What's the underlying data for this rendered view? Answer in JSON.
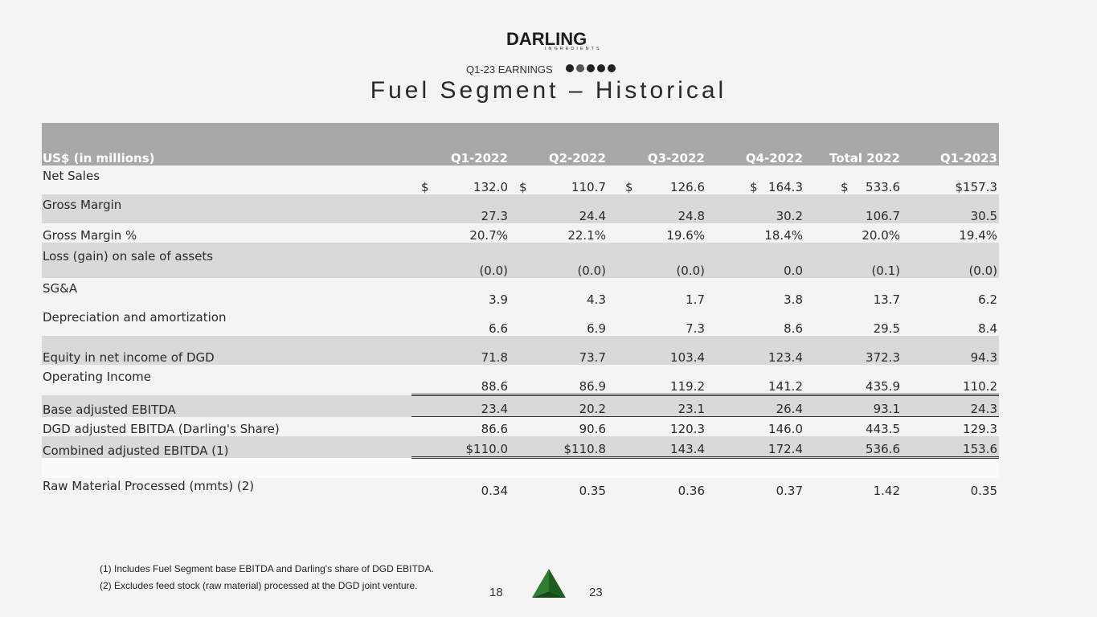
{
  "brand": {
    "name": "DARLING",
    "sub": "INGREDIENTS"
  },
  "header": {
    "subtitle": "Q1-23 EARNINGS",
    "title": "Fuel Segment – Historical"
  },
  "table": {
    "header": [
      "US$ (in millions)",
      "Q1-2022",
      "Q2-2022",
      "Q3-2022",
      "Q4-2022",
      "Total 2022",
      "Q1-2023"
    ],
    "rows": [
      {
        "label": "Net Sales",
        "values": [
          "132.0",
          "110.7",
          "126.6",
          "164.3",
          "533.6",
          "$157.3"
        ]
      },
      {
        "label": "Gross Margin",
        "values": [
          "27.3",
          "24.4",
          "24.8",
          "30.2",
          "106.7",
          "30.5"
        ]
      },
      {
        "label": "Gross Margin %",
        "values": [
          "20.7%",
          "22.1%",
          "19.6%",
          "18.4%",
          "20.0%",
          "19.4%"
        ]
      },
      {
        "label": "Loss (gain) on sale of assets",
        "values": [
          "(0.0)",
          "(0.0)",
          "(0.0)",
          "0.0",
          "(0.1)",
          "(0.0)"
        ]
      },
      {
        "label": "SG&A",
        "values": [
          "3.9",
          "4.3",
          "1.7",
          "3.8",
          "13.7",
          "6.2"
        ]
      },
      {
        "label": "Depreciation and amortization",
        "values": [
          "6.6",
          "6.9",
          "7.3",
          "8.6",
          "29.5",
          "8.4"
        ]
      },
      {
        "label": "Equity in net income of DGD",
        "values": [
          "71.8",
          "73.7",
          "103.4",
          "123.4",
          "372.3",
          "94.3"
        ]
      },
      {
        "label": "Operating Income",
        "values": [
          "88.6",
          "86.9",
          "119.2",
          "141.2",
          "435.9",
          "110.2"
        ]
      },
      {
        "label": "Base adjusted EBITDA",
        "values": [
          "23.4",
          "20.2",
          "23.1",
          "26.4",
          "93.1",
          "24.3"
        ]
      },
      {
        "label": "DGD adjusted EBITDA (Darling's Share)",
        "values": [
          "86.6",
          "90.6",
          "120.3",
          "146.0",
          "443.5",
          "129.3"
        ]
      },
      {
        "label": "Combined adjusted EBITDA (1)",
        "values": [
          "$110.0",
          "$110.8",
          "143.4",
          "172.4",
          "536.6",
          "153.6"
        ]
      },
      {
        "label": "Raw Material Processed (mmts) (2)",
        "values": [
          "0.34",
          "0.35",
          "0.36",
          "0.37",
          "1.42",
          "0.35"
        ]
      }
    ],
    "currency_symbol": "$"
  },
  "footnotes": [
    "(1) Includes Fuel Segment base EBITDA and Darling's share of DGD EBITDA.",
    "(2) Excludes feed stock (raw material) processed at the DGD joint venture."
  ],
  "pages": {
    "current": "18",
    "total": "23"
  },
  "colors": {
    "header_bg": "#a8a8a8",
    "band": "#d9d9d9",
    "brand_green": "#2e7d32"
  }
}
